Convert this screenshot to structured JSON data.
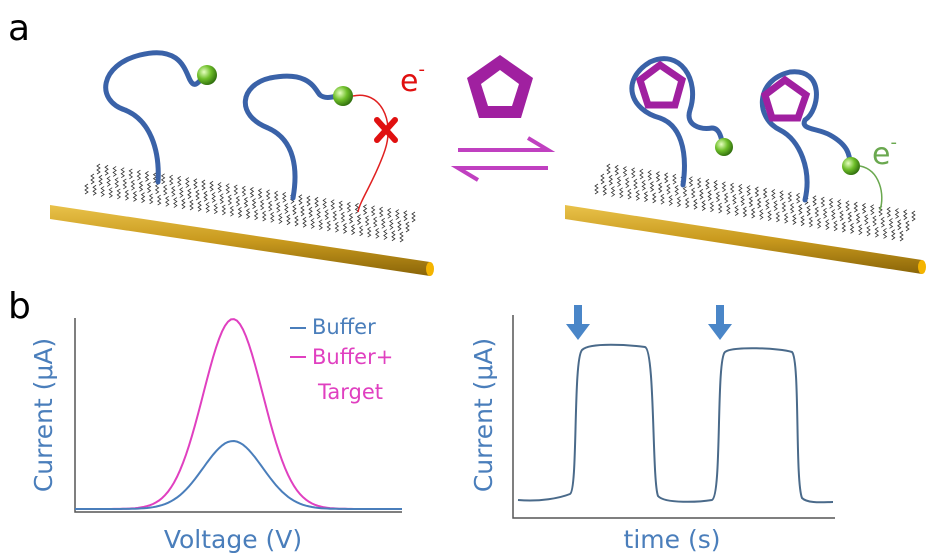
{
  "panel_a": {
    "label": "a",
    "left_electron": {
      "base": "e",
      "sup": "-"
    },
    "right_electron": {
      "base": "e",
      "sup": "-"
    }
  },
  "panel_b": {
    "label": "b",
    "left_plot": {
      "y_label": "Current (μA)",
      "x_label": "Voltage (V)",
      "legend": {
        "buffer": "Buffer",
        "target_lines": [
          "Buffer+",
          "Target"
        ]
      }
    },
    "right_plot": {
      "y_label": "Current (μA)",
      "x_label": "time (s)"
    }
  }
}
